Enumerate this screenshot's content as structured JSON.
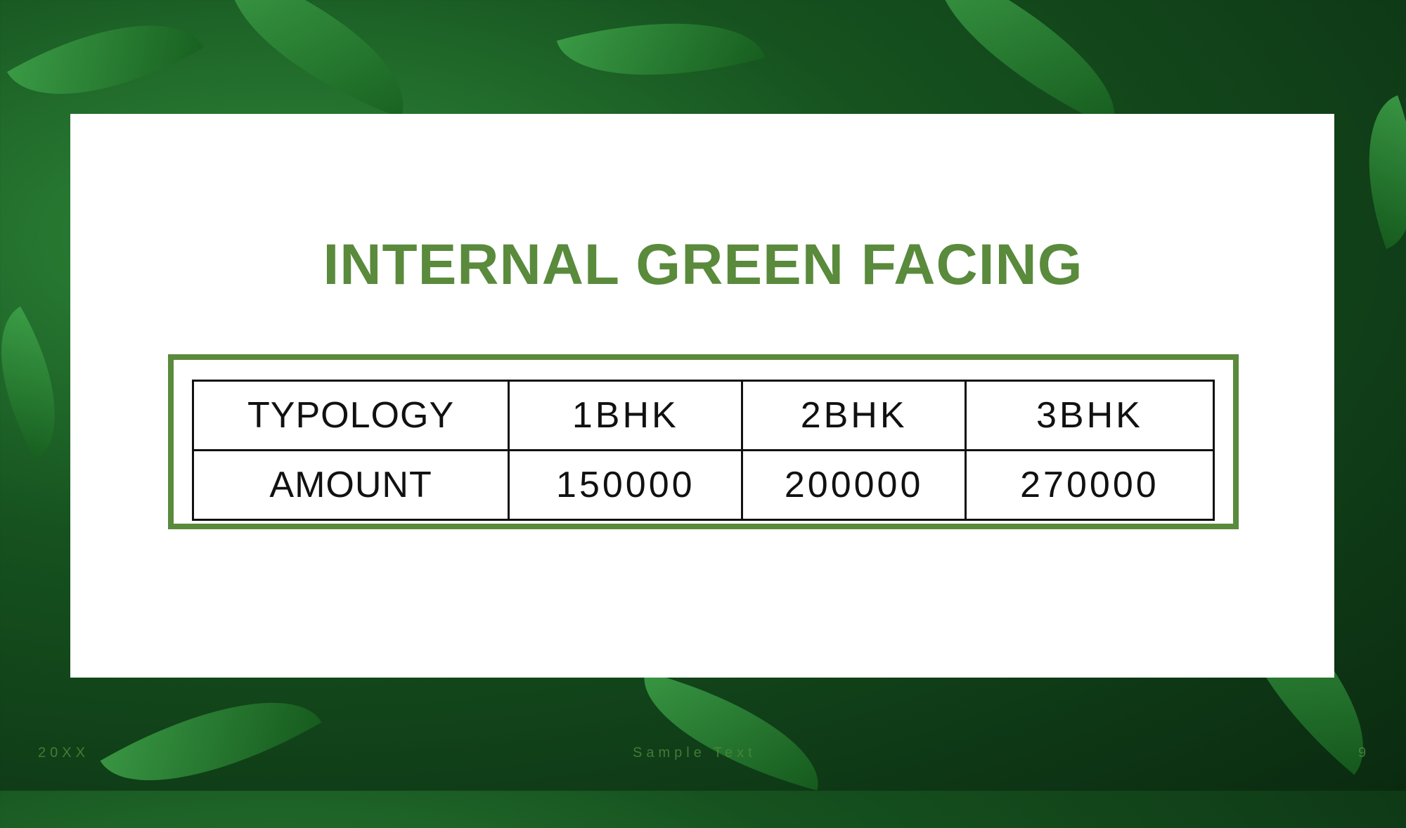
{
  "slide": {
    "title": "INTERNAL GREEN FACING",
    "accent_color": "#5a8a3c"
  },
  "table": {
    "rows": [
      [
        "TYPOLOGY",
        "1BHK",
        "2BHK",
        "3BHK"
      ],
      [
        "AMOUNT",
        "150000",
        "200000",
        "270000"
      ]
    ]
  },
  "footer": {
    "date": "20XX",
    "text": "Sample Text",
    "page": "9"
  }
}
